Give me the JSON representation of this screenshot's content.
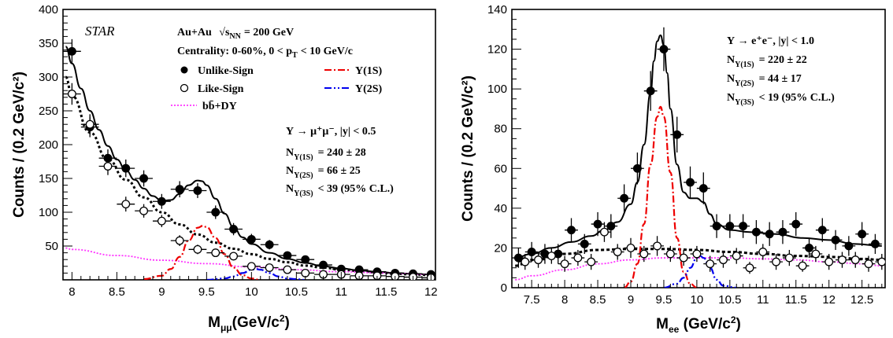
{
  "chart_data": [
    {
      "type": "scatter",
      "panel": "left",
      "xlabel_main": "M",
      "xlabel_sub": "μμ",
      "xlabel_unit": "(GeV/c",
      "xlabel_sup": "2",
      "xlabel_end": ")",
      "ylabel": "Counts / (0.2 GeV/c²)",
      "xlim": [
        7.9,
        12.05
      ],
      "ylim": [
        0,
        400
      ],
      "xticks": [
        "8",
        "8.5",
        "9",
        "9.5",
        "10",
        "10.5",
        "11",
        "11.5",
        "12"
      ],
      "yticks": [
        "50",
        "100",
        "150",
        "200",
        "250",
        "300",
        "350",
        "400"
      ],
      "experiment": "STAR",
      "collision": "Au+Au",
      "energy_sym": "√s",
      "energy_sub": "NN",
      "energy_val": "= 200 GeV",
      "centrality": "Centrality: 0-60%, 0 < p",
      "centrality_sub": "T",
      "centrality_end": "< 10 GeV/c",
      "legend": {
        "unlike": "Unlike-Sign",
        "like": "Like-Sign",
        "bb": "bb̄+DY",
        "y1s": "Υ(1S)",
        "y2s": "Υ(2S)"
      },
      "decay": "Υ → μ⁺μ⁻, |y| < 0.5",
      "yields": [
        {
          "label": "N",
          "state": "Υ(1S)",
          "value": "= 240 ± 28"
        },
        {
          "label": "N",
          "state": "Υ(2S)",
          "value": "= 66 ± 25"
        },
        {
          "label": "N",
          "state": "Υ(3S)",
          "value": "< 39 (95% C.L.)"
        }
      ],
      "series": [
        {
          "name": "Unlike-Sign",
          "x": [
            8.0,
            8.2,
            8.4,
            8.6,
            8.8,
            9.0,
            9.2,
            9.4,
            9.6,
            9.8,
            10.0,
            10.2,
            10.4,
            10.6,
            10.8,
            11.0,
            11.2,
            11.4,
            11.6,
            11.8,
            12.0
          ],
          "y": [
            338,
            226,
            180,
            165,
            150,
            116,
            134,
            132,
            100,
            75,
            60,
            52,
            36,
            30,
            22,
            16,
            15,
            12,
            10,
            9,
            8
          ],
          "err": [
            18,
            15,
            13,
            13,
            12,
            11,
            12,
            11,
            10,
            9,
            8,
            7,
            6,
            5,
            5,
            4,
            4,
            3,
            3,
            3,
            3
          ]
        },
        {
          "name": "Like-Sign",
          "x": [
            8.0,
            8.2,
            8.4,
            8.6,
            8.8,
            9.0,
            9.2,
            9.4,
            9.6,
            9.8,
            10.0,
            10.2,
            10.4,
            10.6,
            10.8,
            11.0,
            11.2,
            11.4,
            11.6,
            11.8,
            12.0
          ],
          "y": [
            275,
            230,
            168,
            112,
            102,
            87,
            58,
            45,
            40,
            35,
            20,
            18,
            15,
            10,
            8,
            8,
            6,
            6,
            5,
            4,
            3
          ],
          "err": [
            16,
            15,
            13,
            11,
            10,
            9,
            8,
            7,
            6,
            6,
            5,
            4,
            4,
            3,
            3,
            3,
            2,
            2,
            2,
            2,
            2
          ]
        },
        {
          "name": "Total fit",
          "x": [
            7.93,
            8.0,
            8.1,
            8.2,
            8.3,
            8.4,
            8.5,
            8.6,
            8.7,
            8.8,
            8.9,
            9.0,
            9.1,
            9.2,
            9.3,
            9.4,
            9.45,
            9.5,
            9.6,
            9.7,
            9.8,
            9.9,
            10.0,
            10.2,
            10.4,
            10.6,
            10.8,
            11.0,
            11.2,
            11.4,
            11.6,
            11.8,
            12.0
          ],
          "y": [
            345,
            320,
            283,
            250,
            222,
            198,
            178,
            162,
            148,
            135,
            124,
            117,
            118,
            127,
            140,
            147,
            146,
            140,
            120,
            98,
            78,
            63,
            53,
            40,
            31,
            25,
            20,
            17,
            14,
            12,
            10,
            9,
            8
          ]
        },
        {
          "name": "bb̄+DY+like-sign background",
          "x": [
            7.93,
            8.0,
            8.2,
            8.4,
            8.6,
            8.8,
            9.0,
            9.2,
            9.4,
            9.6,
            9.8,
            10.0,
            10.2,
            10.4,
            10.6,
            10.8,
            11.0,
            11.2,
            11.4,
            11.6,
            11.8,
            12.0
          ],
          "y": [
            300,
            272,
            218,
            178,
            148,
            122,
            100,
            82,
            67,
            55,
            46,
            38,
            31,
            26,
            21,
            18,
            15,
            13,
            11,
            9,
            8,
            7
          ]
        },
        {
          "name": "bb̄+DY",
          "x": [
            7.93,
            8.0,
            8.5,
            9.0,
            9.5,
            10.0,
            10.5,
            11.0,
            11.5,
            12.0
          ],
          "y": [
            47,
            45,
            36,
            29,
            24,
            19,
            15,
            12,
            10,
            8
          ]
        },
        {
          "name": "Υ(1S)",
          "x": [
            8.8,
            9.0,
            9.1,
            9.2,
            9.3,
            9.4,
            9.46,
            9.5,
            9.6,
            9.7,
            9.8,
            9.9,
            10.0,
            10.1
          ],
          "y": [
            1,
            6,
            16,
            34,
            58,
            77,
            80,
            78,
            62,
            38,
            18,
            7,
            2,
            0
          ]
        },
        {
          "name": "Υ(2S)",
          "x": [
            9.5,
            9.7,
            9.8,
            9.9,
            10.0,
            10.05,
            10.1,
            10.2,
            10.3,
            10.4,
            10.5,
            10.6
          ],
          "y": [
            0,
            2,
            5,
            10,
            15,
            16,
            15,
            10,
            5,
            2,
            1,
            0
          ]
        }
      ]
    },
    {
      "type": "scatter",
      "panel": "right",
      "xlabel_main": "M",
      "xlabel_sub": "ee",
      "xlabel_unit": " (GeV/c",
      "xlabel_sup": "2",
      "xlabel_end": ")",
      "ylabel": "Counts / (0.2 GeV/c²)",
      "xlim": [
        7.2,
        12.85
      ],
      "ylim": [
        0,
        140
      ],
      "xticks": [
        "7.5",
        "8",
        "8.5",
        "9",
        "9.5",
        "10",
        "10.5",
        "11",
        "11.5",
        "12",
        "12.5"
      ],
      "yticks": [
        "0",
        "20",
        "40",
        "60",
        "80",
        "100",
        "120",
        "140"
      ],
      "decay": "Υ → e⁺e⁻, |y| < 1.0",
      "yields": [
        {
          "label": "N",
          "state": "Υ(1S)",
          "value": "= 220 ± 22"
        },
        {
          "label": "N",
          "state": "Υ(2S)",
          "value": "= 44 ± 17"
        },
        {
          "label": "N",
          "state": "Υ(3S)",
          "value": "< 19 (95% C.L.)"
        }
      ],
      "series": [
        {
          "name": "Unlike-Sign",
          "x": [
            7.3,
            7.5,
            7.7,
            7.9,
            8.1,
            8.3,
            8.5,
            8.7,
            8.9,
            9.1,
            9.3,
            9.5,
            9.7,
            9.9,
            10.1,
            10.3,
            10.5,
            10.7,
            10.9,
            11.1,
            11.3,
            11.5,
            11.7,
            11.9,
            12.1,
            12.3,
            12.5,
            12.7
          ],
          "y": [
            15,
            18,
            17,
            17,
            29,
            22,
            32,
            31,
            45,
            60,
            99,
            120,
            77,
            53,
            50,
            31,
            31,
            31,
            28,
            27,
            28,
            32,
            20,
            29,
            24,
            21,
            27,
            22
          ],
          "err": [
            5,
            5,
            5,
            5,
            6,
            5,
            6,
            6,
            7,
            8,
            10,
            11,
            9,
            8,
            8,
            6,
            6,
            6,
            6,
            6,
            6,
            6,
            5,
            6,
            5,
            5,
            6,
            5
          ]
        },
        {
          "name": "Like-Sign",
          "x": [
            7.4,
            7.6,
            7.8,
            8.0,
            8.2,
            8.4,
            8.6,
            8.8,
            9.0,
            9.2,
            9.4,
            9.6,
            9.8,
            10.0,
            10.2,
            10.4,
            10.6,
            10.8,
            11.0,
            11.2,
            11.4,
            11.6,
            11.8,
            12.0,
            12.2,
            12.4,
            12.6,
            12.8
          ],
          "y": [
            13,
            14,
            16,
            12,
            15,
            13,
            28,
            18,
            20,
            17,
            21,
            17,
            15,
            17,
            12,
            14,
            16,
            10,
            18,
            13,
            15,
            11,
            17,
            13,
            14,
            14,
            12,
            13
          ],
          "err": [
            4,
            4,
            4,
            4,
            4,
            4,
            5,
            4,
            5,
            4,
            5,
            4,
            4,
            4,
            4,
            4,
            4,
            3,
            4,
            4,
            4,
            3,
            4,
            4,
            4,
            4,
            4,
            4
          ]
        },
        {
          "name": "Total fit",
          "x": [
            7.25,
            7.5,
            7.8,
            8.1,
            8.4,
            8.6,
            8.8,
            9.0,
            9.1,
            9.2,
            9.3,
            9.35,
            9.4,
            9.45,
            9.5,
            9.55,
            9.6,
            9.7,
            9.8,
            9.9,
            10.0,
            10.1,
            10.2,
            10.3,
            10.5,
            10.8,
            11.2,
            11.6,
            12.0,
            12.4,
            12.8
          ],
          "y": [
            15,
            17,
            20,
            23,
            26,
            29,
            33,
            42,
            53,
            72,
            98,
            114,
            124,
            127,
            122,
            108,
            90,
            62,
            48,
            45,
            45,
            43,
            37,
            32,
            29,
            28,
            27,
            25,
            24,
            22,
            21
          ]
        },
        {
          "name": "Background (dashed)",
          "x": [
            7.25,
            7.5,
            8.0,
            8.5,
            9.0,
            9.5,
            10.0,
            10.5,
            11.0,
            11.5,
            12.0,
            12.5,
            12.8
          ],
          "y": [
            11,
            14,
            17,
            19,
            19.5,
            19.5,
            19,
            18,
            17,
            16,
            15.5,
            14.5,
            14
          ]
        },
        {
          "name": "bb̄+DY",
          "x": [
            7.25,
            7.5,
            8.0,
            8.5,
            9.0,
            9.5,
            10.0,
            10.5,
            11.0,
            11.5,
            12.0,
            12.5,
            12.8
          ],
          "y": [
            4,
            6,
            9,
            12,
            14,
            15,
            15,
            15,
            14.5,
            14,
            13,
            12,
            11
          ]
        },
        {
          "name": "Υ(1S)",
          "x": [
            8.9,
            9.0,
            9.1,
            9.2,
            9.3,
            9.4,
            9.45,
            9.5,
            9.6,
            9.7,
            9.8,
            9.9,
            10.0
          ],
          "y": [
            0,
            3,
            12,
            32,
            62,
            86,
            91,
            86,
            58,
            25,
            8,
            2,
            0
          ]
        },
        {
          "name": "Υ(2S)",
          "x": [
            9.5,
            9.7,
            9.8,
            9.9,
            10.0,
            10.05,
            10.1,
            10.2,
            10.3,
            10.4,
            10.6
          ],
          "y": [
            0,
            2,
            5,
            10,
            15,
            16,
            15,
            10,
            4,
            1,
            0
          ]
        }
      ]
    }
  ]
}
